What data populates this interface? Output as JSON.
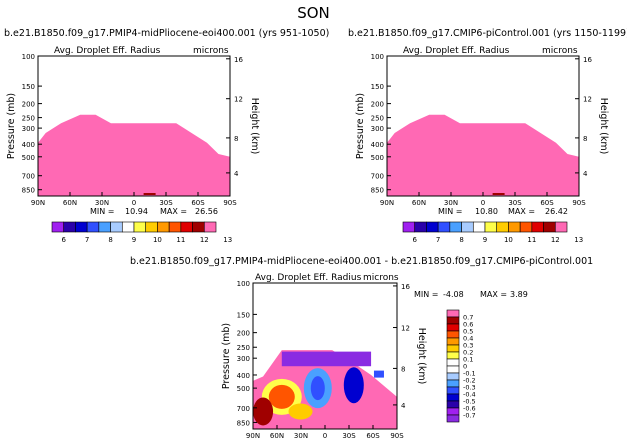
{
  "page": {
    "title": "SON"
  },
  "chart_data": [
    {
      "type": "heatmap",
      "id": "panel-1",
      "title": "b.e21.B1850.f09_g17.PMIP4-midPliocene-eoi400.001 (yrs 951-1050)",
      "subtitle": "Avg. Droplet Eff. Radius",
      "units": "microns",
      "ylabel": "Pressure (mb)",
      "y2label": "Height (km)",
      "xticks": [
        "90N",
        "60N",
        "30N",
        "0",
        "30S",
        "60S",
        "90S"
      ],
      "yticks": [
        "100",
        "150",
        "200",
        "250",
        "300",
        "400",
        "500",
        "700",
        "850"
      ],
      "y2ticks": [
        "16",
        "12",
        "8",
        "4"
      ],
      "stats": {
        "min_label": "MIN =",
        "min": "10.94",
        "max_label": "MAX =",
        "max": "26.56"
      },
      "colorbar": {
        "labels": [
          "6",
          "7",
          "8",
          "9",
          "10",
          "11",
          "12",
          "13"
        ],
        "colors": [
          "#a020f0",
          "#2a00aa",
          "#0000d0",
          "#3050ff",
          "#4aa0ff",
          "#a8ccff",
          "#ffffff",
          "#ffff4a",
          "#ffcc00",
          "#ff9900",
          "#ff5500",
          "#e00000",
          "#a00000",
          "#ff69b4"
        ]
      }
    },
    {
      "type": "heatmap",
      "id": "panel-2",
      "title": "b.e21.B1850.f09_g17.CMIP6-piControl.001 (yrs 1150-1199)",
      "subtitle": "Avg. Droplet Eff. Radius",
      "units": "microns",
      "ylabel": "Pressure (mb)",
      "y2label": "Height (km)",
      "xticks": [
        "90N",
        "60N",
        "30N",
        "0",
        "30S",
        "60S",
        "90S"
      ],
      "yticks": [
        "100",
        "150",
        "200",
        "250",
        "300",
        "400",
        "500",
        "700",
        "850"
      ],
      "y2ticks": [
        "16",
        "12",
        "8",
        "4"
      ],
      "stats": {
        "min_label": "MIN =",
        "min": "10.80",
        "max_label": "MAX =",
        "max": "26.42"
      },
      "colorbar": {
        "labels": [
          "6",
          "7",
          "8",
          "9",
          "10",
          "11",
          "12",
          "13"
        ],
        "colors": [
          "#a020f0",
          "#2a00aa",
          "#0000d0",
          "#3050ff",
          "#4aa0ff",
          "#a8ccff",
          "#ffffff",
          "#ffff4a",
          "#ffcc00",
          "#ff9900",
          "#ff5500",
          "#e00000",
          "#a00000",
          "#ff69b4"
        ]
      }
    },
    {
      "type": "heatmap",
      "id": "panel-3",
      "title": "b.e21.B1850.f09_g17.PMIP4-midPliocene-eoi400.001 - b.e21.B1850.f09_g17.CMIP6-piControl.001",
      "subtitle": "Avg. Droplet Eff. Radius",
      "units": "microns",
      "ylabel": "Pressure (mb)",
      "y2label": "Height (km)",
      "xticks": [
        "90N",
        "60N",
        "30N",
        "0",
        "30S",
        "60S",
        "90S"
      ],
      "yticks": [
        "100",
        "150",
        "200",
        "250",
        "300",
        "400",
        "500",
        "700",
        "850"
      ],
      "y2ticks": [
        "16",
        "12",
        "8",
        "4"
      ],
      "stats": {
        "min_label": "MIN =",
        "min": "-4.08",
        "max_label": "MAX =",
        "max": "3.89"
      },
      "colorbar": {
        "labels": [
          "0.7",
          "0.6",
          "0.5",
          "0.4",
          "0.3",
          "0.2",
          "0.1",
          "0",
          "-0.1",
          "-0.2",
          "-0.3",
          "-0.4",
          "-0.5",
          "-0.6",
          "-0.7"
        ],
        "colors": [
          "#ff69b4",
          "#a00000",
          "#e00000",
          "#ff5500",
          "#ff9900",
          "#ffcc00",
          "#ffff4a",
          "#ffffff",
          "#ffffff",
          "#a8ccff",
          "#4aa0ff",
          "#3050ff",
          "#0000d0",
          "#2a00aa",
          "#a020f0",
          "#8a2be2"
        ]
      }
    }
  ]
}
